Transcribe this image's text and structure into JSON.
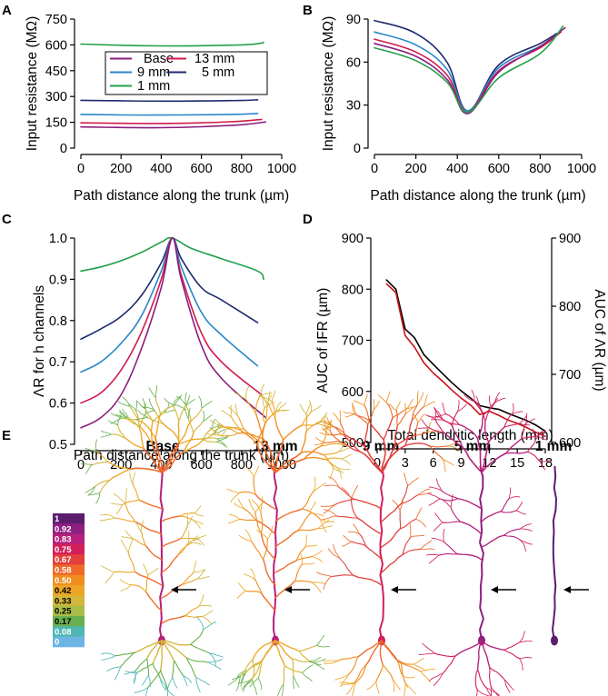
{
  "colors": {
    "base": "#8b1e7f",
    "13 mm": "#d11a4b",
    "9 mm": "#2a86c8",
    "5 mm": "#1c2a6e",
    "1 mm": "#23a04a",
    "if_curve": "#000000",
    "lambda_curve": "#c81418"
  },
  "panels": {
    "A": {
      "label": "A"
    },
    "B": {
      "label": "B"
    },
    "C": {
      "label": "C"
    },
    "D": {
      "label": "D"
    },
    "E": {
      "label": "E"
    }
  },
  "legend": {
    "items": [
      "Base",
      "13 mm",
      "9 mm",
      "5 mm",
      "1 mm"
    ]
  },
  "morphologies": {
    "titles": [
      "Base",
      "13 mm",
      "9 mm",
      "5 mm",
      "1 mm"
    ]
  },
  "colorbar": {
    "labels": [
      "1",
      "0.92",
      "0.83",
      "0.75",
      "0.67",
      "0.58",
      "0.50",
      "0.42",
      "0.33",
      "0.25",
      "0.17",
      "0.08",
      "0"
    ],
    "colors": [
      "#5b1e6e",
      "#8e2080",
      "#b5207a",
      "#d21f5c",
      "#e2403c",
      "#ee6a2a",
      "#f08d1f",
      "#eea526",
      "#d4b63a",
      "#a8bd48",
      "#6ab04e",
      "#4fb6b3",
      "#6db4e4"
    ]
  },
  "chart_data": [
    {
      "id": "A",
      "type": "line",
      "title": "",
      "xlabel": "Path distance along the trunk (µm)",
      "ylabel": "Input resistance (MΩ)",
      "xlim": [
        0,
        1000
      ],
      "ylim": [
        0,
        750
      ],
      "xticks": [
        "0",
        "200",
        "400",
        "600",
        "800",
        "1000"
      ],
      "yticks": [
        "0",
        "150",
        "300",
        "450",
        "600",
        "750"
      ],
      "series": [
        {
          "name": "1 mm",
          "x": [
            0,
            200,
            400,
            600,
            800,
            880,
            910
          ],
          "y": [
            605,
            598,
            594,
            595,
            600,
            607,
            614
          ]
        },
        {
          "name": "5 mm",
          "x": [
            0,
            200,
            400,
            600,
            800,
            880
          ],
          "y": [
            278,
            275,
            273,
            274,
            277,
            281
          ]
        },
        {
          "name": "9 mm",
          "x": [
            0,
            200,
            400,
            600,
            800,
            880
          ],
          "y": [
            196,
            193,
            192,
            194,
            197,
            202
          ]
        },
        {
          "name": "13 mm",
          "x": [
            0,
            200,
            400,
            600,
            800,
            900
          ],
          "y": [
            147,
            144,
            143,
            147,
            157,
            167
          ]
        },
        {
          "name": "Base",
          "x": [
            0,
            200,
            400,
            600,
            800,
            920
          ],
          "y": [
            123,
            120,
            119,
            124,
            136,
            152
          ]
        }
      ]
    },
    {
      "id": "B",
      "type": "line",
      "title": "",
      "xlabel": "Path distance along the trunk (µm)",
      "ylabel": "Input resistance (MΩ)",
      "xlim": [
        0,
        1000
      ],
      "ylim": [
        0,
        90
      ],
      "xticks": [
        "0",
        "200",
        "400",
        "600",
        "800",
        "1000"
      ],
      "yticks": [
        "0",
        "30",
        "60",
        "90"
      ],
      "series": [
        {
          "name": "5 mm",
          "x": [
            0,
            200,
            350,
            450,
            600,
            800,
            880
          ],
          "y": [
            89,
            80,
            60,
            26,
            58,
            73,
            80
          ]
        },
        {
          "name": "9 mm",
          "x": [
            0,
            200,
            350,
            450,
            600,
            800,
            880
          ],
          "y": [
            81,
            72,
            55,
            26,
            56,
            71,
            79
          ]
        },
        {
          "name": "13 mm",
          "x": [
            0,
            200,
            350,
            450,
            600,
            800,
            900
          ],
          "y": [
            76,
            67,
            51,
            25,
            54,
            70,
            81
          ]
        },
        {
          "name": "Base",
          "x": [
            0,
            200,
            350,
            450,
            600,
            800,
            920
          ],
          "y": [
            73,
            64,
            48,
            24,
            53,
            71,
            84
          ]
        },
        {
          "name": "1 mm",
          "x": [
            0,
            200,
            350,
            450,
            600,
            800,
            910
          ],
          "y": [
            70,
            61,
            46,
            25,
            49,
            66,
            85
          ]
        }
      ]
    },
    {
      "id": "C",
      "type": "line",
      "title": "",
      "xlabel": "Path distance along the trunk (µm)",
      "ylabel": "ΛR for h channels",
      "xlim": [
        0,
        1000
      ],
      "ylim": [
        0.5,
        1.0
      ],
      "xticks": [
        "0",
        "200",
        "400",
        "600",
        "800",
        "1000"
      ],
      "yticks": [
        "0.5",
        "0.6",
        "0.7",
        "0.8",
        "0.9",
        "1.0"
      ],
      "series": [
        {
          "name": "1 mm",
          "x": [
            0,
            100,
            200,
            300,
            400,
            455,
            550,
            700,
            880,
            910
          ],
          "y": [
            0.92,
            0.93,
            0.945,
            0.965,
            0.99,
            1.0,
            0.975,
            0.95,
            0.92,
            0.9
          ]
        },
        {
          "name": "5 mm",
          "x": [
            0,
            100,
            200,
            300,
            400,
            455,
            500,
            600,
            700,
            880
          ],
          "y": [
            0.755,
            0.78,
            0.81,
            0.86,
            0.94,
            1.0,
            0.95,
            0.88,
            0.85,
            0.795
          ]
        },
        {
          "name": "9 mm",
          "x": [
            0,
            100,
            200,
            300,
            400,
            455,
            500,
            600,
            700,
            880
          ],
          "y": [
            0.675,
            0.7,
            0.745,
            0.81,
            0.92,
            1.0,
            0.93,
            0.82,
            0.765,
            0.69
          ]
        },
        {
          "name": "13 mm",
          "x": [
            0,
            100,
            200,
            300,
            400,
            455,
            500,
            600,
            700,
            900
          ],
          "y": [
            0.6,
            0.625,
            0.68,
            0.77,
            0.9,
            1.0,
            0.91,
            0.77,
            0.7,
            0.62
          ]
        },
        {
          "name": "Base",
          "x": [
            0,
            100,
            200,
            300,
            400,
            455,
            500,
            600,
            700,
            920
          ],
          "y": [
            0.54,
            0.565,
            0.62,
            0.73,
            0.88,
            1.0,
            0.9,
            0.74,
            0.66,
            0.565
          ]
        }
      ]
    },
    {
      "id": "D",
      "type": "line",
      "title": "",
      "xlabel": "Total dendritic length (mm)",
      "ylabel": "AUC of IFR (µm)",
      "ylabel_right": "AUC of ΛR (µm)",
      "xlim": [
        0,
        18
      ],
      "ylim": [
        500,
        900
      ],
      "ylim_right": [
        600,
        900
      ],
      "xticks": [
        "0",
        "3",
        "6",
        "9",
        "12",
        "15",
        "18"
      ],
      "yticks": [
        "500",
        "600",
        "700",
        "800",
        "900"
      ],
      "yticks_right": [
        "600",
        "700",
        "800",
        "900"
      ],
      "series": [
        {
          "name": "AUC of IFR",
          "axis": "left",
          "x": [
            1,
            2,
            3,
            4,
            5,
            6,
            7,
            8,
            9,
            10,
            11,
            12,
            13,
            14,
            15,
            16,
            17,
            18
          ],
          "y": [
            818,
            800,
            722,
            705,
            672,
            653,
            635,
            617,
            601,
            587,
            572,
            568,
            565,
            557,
            550,
            543,
            534,
            522
          ]
        },
        {
          "name": "AUC of ΛR",
          "axis": "right",
          "x": [
            1,
            2,
            3,
            4,
            5,
            6,
            7,
            8,
            9,
            10,
            11,
            12,
            13,
            14,
            15,
            16,
            17,
            18
          ],
          "y": [
            833,
            820,
            757,
            740,
            717,
            702,
            690,
            677,
            665,
            655,
            641,
            646,
            640,
            633,
            628,
            622,
            615,
            609
          ]
        }
      ]
    }
  ]
}
